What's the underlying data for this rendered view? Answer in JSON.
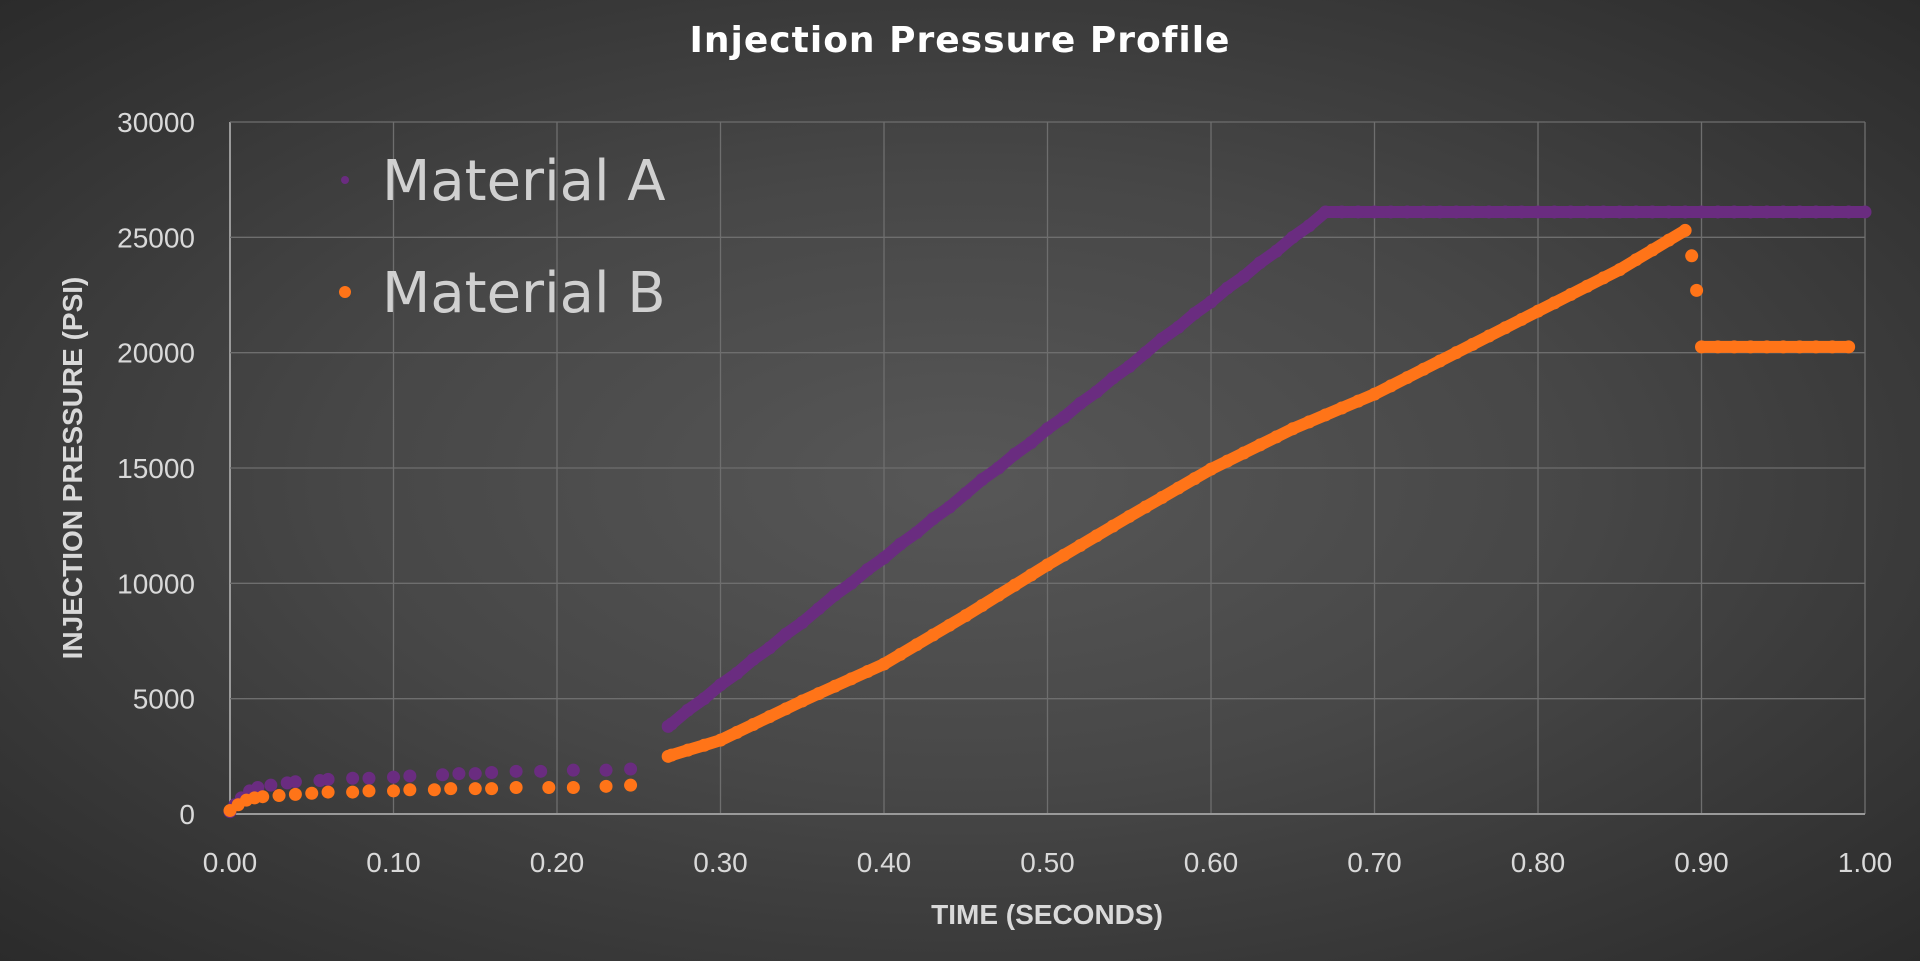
{
  "chart_data": {
    "type": "scatter",
    "title": "Injection Pressure Profile",
    "xlabel": "TIME (SECONDS)",
    "ylabel": "INJECTION PRESSURE (PSI)",
    "xlim": [
      0,
      1
    ],
    "ylim": [
      0,
      30000
    ],
    "xticks": [
      "0.00",
      "0.10",
      "0.20",
      "0.30",
      "0.40",
      "0.50",
      "0.60",
      "0.70",
      "0.80",
      "0.90",
      "1.00"
    ],
    "yticks": [
      "0",
      "5000",
      "10000",
      "15000",
      "20000",
      "25000",
      "30000"
    ],
    "grid": true,
    "legend_position": "top-left",
    "series": [
      {
        "name": "Material A",
        "color": "#6a2c80",
        "points": [
          [
            0,
            100
          ],
          [
            0.003,
            400
          ],
          [
            0.007,
            700
          ],
          [
            0.012,
            1000
          ],
          [
            0.017,
            1150
          ],
          [
            0.025,
            1250
          ],
          [
            0.035,
            1350
          ],
          [
            0.04,
            1400
          ],
          [
            0.055,
            1450
          ],
          [
            0.06,
            1500
          ],
          [
            0.075,
            1550
          ],
          [
            0.085,
            1550
          ],
          [
            0.1,
            1600
          ],
          [
            0.11,
            1650
          ],
          [
            0.13,
            1700
          ],
          [
            0.14,
            1750
          ],
          [
            0.15,
            1750
          ],
          [
            0.16,
            1800
          ],
          [
            0.175,
            1850
          ],
          [
            0.19,
            1850
          ],
          [
            0.21,
            1900
          ],
          [
            0.23,
            1900
          ],
          [
            0.245,
            1950
          ],
          [
            0.268,
            3800
          ],
          [
            0.27,
            3900
          ],
          [
            0.28,
            4500
          ],
          [
            0.29,
            5000
          ],
          [
            0.3,
            5600
          ],
          [
            0.31,
            6100
          ],
          [
            0.32,
            6700
          ],
          [
            0.33,
            7200
          ],
          [
            0.34,
            7800
          ],
          [
            0.35,
            8300
          ],
          [
            0.36,
            8900
          ],
          [
            0.37,
            9500
          ],
          [
            0.38,
            10000
          ],
          [
            0.39,
            10600
          ],
          [
            0.4,
            11100
          ],
          [
            0.41,
            11700
          ],
          [
            0.42,
            12200
          ],
          [
            0.43,
            12800
          ],
          [
            0.44,
            13300
          ],
          [
            0.45,
            13900
          ],
          [
            0.46,
            14500
          ],
          [
            0.47,
            15000
          ],
          [
            0.48,
            15600
          ],
          [
            0.49,
            16100
          ],
          [
            0.5,
            16700
          ],
          [
            0.51,
            17200
          ],
          [
            0.52,
            17800
          ],
          [
            0.53,
            18300
          ],
          [
            0.54,
            18900
          ],
          [
            0.55,
            19400
          ],
          [
            0.56,
            20000
          ],
          [
            0.57,
            20600
          ],
          [
            0.58,
            21100
          ],
          [
            0.59,
            21700
          ],
          [
            0.6,
            22200
          ],
          [
            0.61,
            22800
          ],
          [
            0.62,
            23300
          ],
          [
            0.63,
            23900
          ],
          [
            0.64,
            24400
          ],
          [
            0.65,
            25000
          ],
          [
            0.66,
            25500
          ],
          [
            0.67,
            26100
          ],
          [
            0.68,
            26100
          ],
          [
            0.69,
            26100
          ],
          [
            0.7,
            26100
          ],
          [
            0.71,
            26100
          ],
          [
            0.72,
            26100
          ],
          [
            0.73,
            26100
          ],
          [
            0.74,
            26100
          ],
          [
            0.75,
            26100
          ],
          [
            0.76,
            26100
          ],
          [
            0.77,
            26100
          ],
          [
            0.78,
            26100
          ],
          [
            0.79,
            26100
          ],
          [
            0.8,
            26100
          ],
          [
            0.81,
            26100
          ],
          [
            0.82,
            26100
          ],
          [
            0.83,
            26100
          ],
          [
            0.84,
            26100
          ],
          [
            0.85,
            26100
          ],
          [
            0.86,
            26100
          ],
          [
            0.87,
            26100
          ],
          [
            0.88,
            26100
          ],
          [
            0.89,
            26100
          ],
          [
            0.9,
            26100
          ],
          [
            0.91,
            26100
          ],
          [
            0.92,
            26100
          ],
          [
            0.93,
            26100
          ],
          [
            0.94,
            26100
          ],
          [
            0.95,
            26100
          ],
          [
            0.96,
            26100
          ],
          [
            0.97,
            26100
          ],
          [
            0.98,
            26100
          ],
          [
            0.99,
            26100
          ],
          [
            1.0,
            26100
          ]
        ]
      },
      {
        "name": "Material B",
        "color": "#ff7418",
        "points": [
          [
            0,
            150
          ],
          [
            0.005,
            400
          ],
          [
            0.01,
            600
          ],
          [
            0.015,
            700
          ],
          [
            0.02,
            750
          ],
          [
            0.03,
            800
          ],
          [
            0.04,
            850
          ],
          [
            0.05,
            900
          ],
          [
            0.06,
            950
          ],
          [
            0.075,
            950
          ],
          [
            0.085,
            1000
          ],
          [
            0.1,
            1000
          ],
          [
            0.11,
            1050
          ],
          [
            0.125,
            1050
          ],
          [
            0.135,
            1100
          ],
          [
            0.15,
            1100
          ],
          [
            0.16,
            1100
          ],
          [
            0.175,
            1150
          ],
          [
            0.195,
            1150
          ],
          [
            0.21,
            1150
          ],
          [
            0.23,
            1200
          ],
          [
            0.245,
            1250
          ],
          [
            0.268,
            2500
          ],
          [
            0.27,
            2550
          ],
          [
            0.28,
            2770
          ],
          [
            0.29,
            2980
          ],
          [
            0.3,
            3200
          ],
          [
            0.31,
            3540
          ],
          [
            0.32,
            3880
          ],
          [
            0.33,
            4220
          ],
          [
            0.34,
            4560
          ],
          [
            0.35,
            4900
          ],
          [
            0.36,
            5220
          ],
          [
            0.37,
            5540
          ],
          [
            0.38,
            5860
          ],
          [
            0.39,
            6180
          ],
          [
            0.4,
            6500
          ],
          [
            0.41,
            6920
          ],
          [
            0.42,
            7340
          ],
          [
            0.43,
            7760
          ],
          [
            0.44,
            8180
          ],
          [
            0.45,
            8600
          ],
          [
            0.46,
            9040
          ],
          [
            0.47,
            9480
          ],
          [
            0.48,
            9920
          ],
          [
            0.49,
            10360
          ],
          [
            0.5,
            10800
          ],
          [
            0.51,
            11220
          ],
          [
            0.52,
            11640
          ],
          [
            0.53,
            12060
          ],
          [
            0.54,
            12480
          ],
          [
            0.55,
            12900
          ],
          [
            0.56,
            13310
          ],
          [
            0.57,
            13720
          ],
          [
            0.58,
            14130
          ],
          [
            0.59,
            14540
          ],
          [
            0.6,
            14950
          ],
          [
            0.61,
            15300
          ],
          [
            0.62,
            15650
          ],
          [
            0.63,
            16000
          ],
          [
            0.64,
            16350
          ],
          [
            0.65,
            16700
          ],
          [
            0.66,
            17000
          ],
          [
            0.67,
            17300
          ],
          [
            0.68,
            17600
          ],
          [
            0.69,
            17900
          ],
          [
            0.7,
            18200
          ],
          [
            0.71,
            18560
          ],
          [
            0.72,
            18920
          ],
          [
            0.73,
            19280
          ],
          [
            0.74,
            19640
          ],
          [
            0.75,
            20000
          ],
          [
            0.76,
            20360
          ],
          [
            0.77,
            20720
          ],
          [
            0.78,
            21080
          ],
          [
            0.79,
            21440
          ],
          [
            0.8,
            21800
          ],
          [
            0.81,
            22160
          ],
          [
            0.82,
            22520
          ],
          [
            0.83,
            22880
          ],
          [
            0.84,
            23240
          ],
          [
            0.85,
            23600
          ],
          [
            0.86,
            24030
          ],
          [
            0.87,
            24450
          ],
          [
            0.88,
            24880
          ],
          [
            0.89,
            25300
          ],
          [
            0.894,
            24200
          ],
          [
            0.897,
            22700
          ],
          [
            0.9,
            20250
          ],
          [
            0.91,
            20250
          ],
          [
            0.92,
            20250
          ],
          [
            0.93,
            20250
          ],
          [
            0.94,
            20250
          ],
          [
            0.95,
            20250
          ],
          [
            0.96,
            20250
          ],
          [
            0.97,
            20250
          ],
          [
            0.98,
            20250
          ],
          [
            0.99,
            20250
          ]
        ]
      }
    ]
  }
}
